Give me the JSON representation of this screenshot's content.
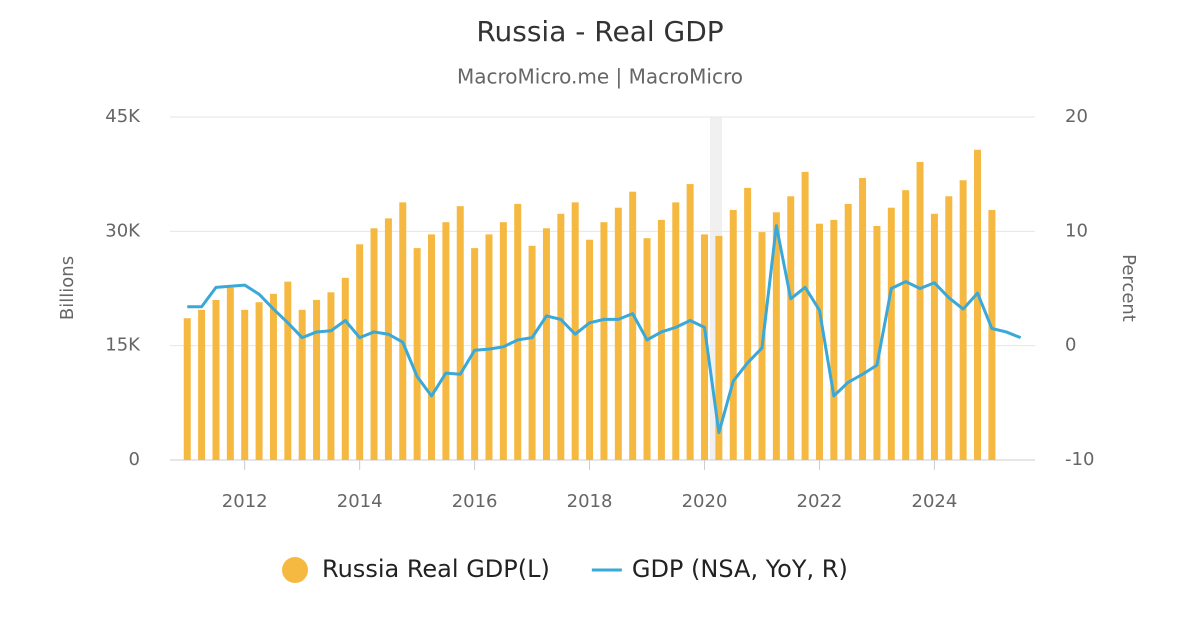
{
  "chart_data": {
    "type": "bar",
    "title": "Russia - Real GDP",
    "subtitle": "MacroMicro.me | MacroMicro",
    "ylabel": "Billions",
    "y2label": "Percent",
    "x": [
      2011,
      2011.25,
      2011.5,
      2011.75,
      2012,
      2012.25,
      2012.5,
      2012.75,
      2013,
      2013.25,
      2013.5,
      2013.75,
      2014,
      2014.25,
      2014.5,
      2014.75,
      2015,
      2015.25,
      2015.5,
      2015.75,
      2016,
      2016.25,
      2016.5,
      2016.75,
      2017,
      2017.25,
      2017.5,
      2017.75,
      2018,
      2018.25,
      2018.5,
      2018.75,
      2019,
      2019.25,
      2019.5,
      2019.75,
      2020,
      2020.25,
      2020.5,
      2020.75,
      2021,
      2021.25,
      2021.5,
      2021.75,
      2022,
      2022.25,
      2022.5,
      2022.75,
      2023,
      2023.25,
      2023.5,
      2023.75,
      2024,
      2024.25,
      2024.5,
      2024.75,
      2025,
      2025.25,
      2025.5
    ],
    "series": [
      {
        "name": "Russia Real GDP(L)",
        "type": "bar",
        "color": "#f5b942",
        "values": [
          18600,
          19700,
          21000,
          22600,
          19700,
          20700,
          21800,
          23400,
          19700,
          21000,
          22000,
          23900,
          28300,
          30400,
          31700,
          33800,
          27800,
          29600,
          31200,
          33300,
          27800,
          29600,
          31200,
          33600,
          28100,
          30400,
          32300,
          33800,
          28900,
          31200,
          33100,
          35200,
          29100,
          31500,
          33800,
          36200,
          29600,
          29400,
          32800,
          35700,
          29900,
          32500,
          34600,
          37800,
          31000,
          31500,
          33600,
          37000,
          30700,
          33100,
          35400,
          39100,
          32300,
          34600,
          36700,
          40700,
          32800,
          null,
          null
        ]
      },
      {
        "name": "GDP (NSA, YoY, R)",
        "type": "line",
        "axis": "y2",
        "color": "#3aa8d8",
        "values": [
          3.4,
          3.4,
          5.1,
          5.2,
          5.3,
          4.5,
          3.2,
          2.0,
          0.7,
          1.2,
          1.3,
          2.2,
          0.7,
          1.2,
          1.0,
          0.3,
          -2.7,
          -4.4,
          -2.4,
          -2.5,
          -0.4,
          -0.3,
          -0.1,
          0.5,
          0.7,
          2.6,
          2.3,
          1.0,
          2.0,
          2.3,
          2.3,
          2.8,
          0.5,
          1.2,
          1.6,
          2.2,
          1.6,
          -7.6,
          -3.1,
          -1.5,
          -0.2,
          10.5,
          4.1,
          5.1,
          3.1,
          -4.4,
          -3.2,
          -2.5,
          -1.7,
          5.0,
          5.6,
          5.0,
          5.5,
          4.2,
          3.2,
          4.6,
          1.5,
          1.2,
          0.7
        ]
      }
    ],
    "xlim": [
      2010.7,
      2025.75
    ],
    "xticks": [
      2012,
      2014,
      2016,
      2018,
      2020,
      2022,
      2024
    ],
    "ylim": [
      0,
      45000
    ],
    "yticks": [
      {
        "value": 0,
        "label": "0"
      },
      {
        "value": 15000,
        "label": "15K"
      },
      {
        "value": 30000,
        "label": "30K"
      },
      {
        "value": 45000,
        "label": "45K"
      }
    ],
    "y2lim": [
      -10,
      20
    ],
    "y2ticks": [
      -10,
      0,
      10,
      20
    ],
    "grid": true,
    "legend": "bottom"
  }
}
